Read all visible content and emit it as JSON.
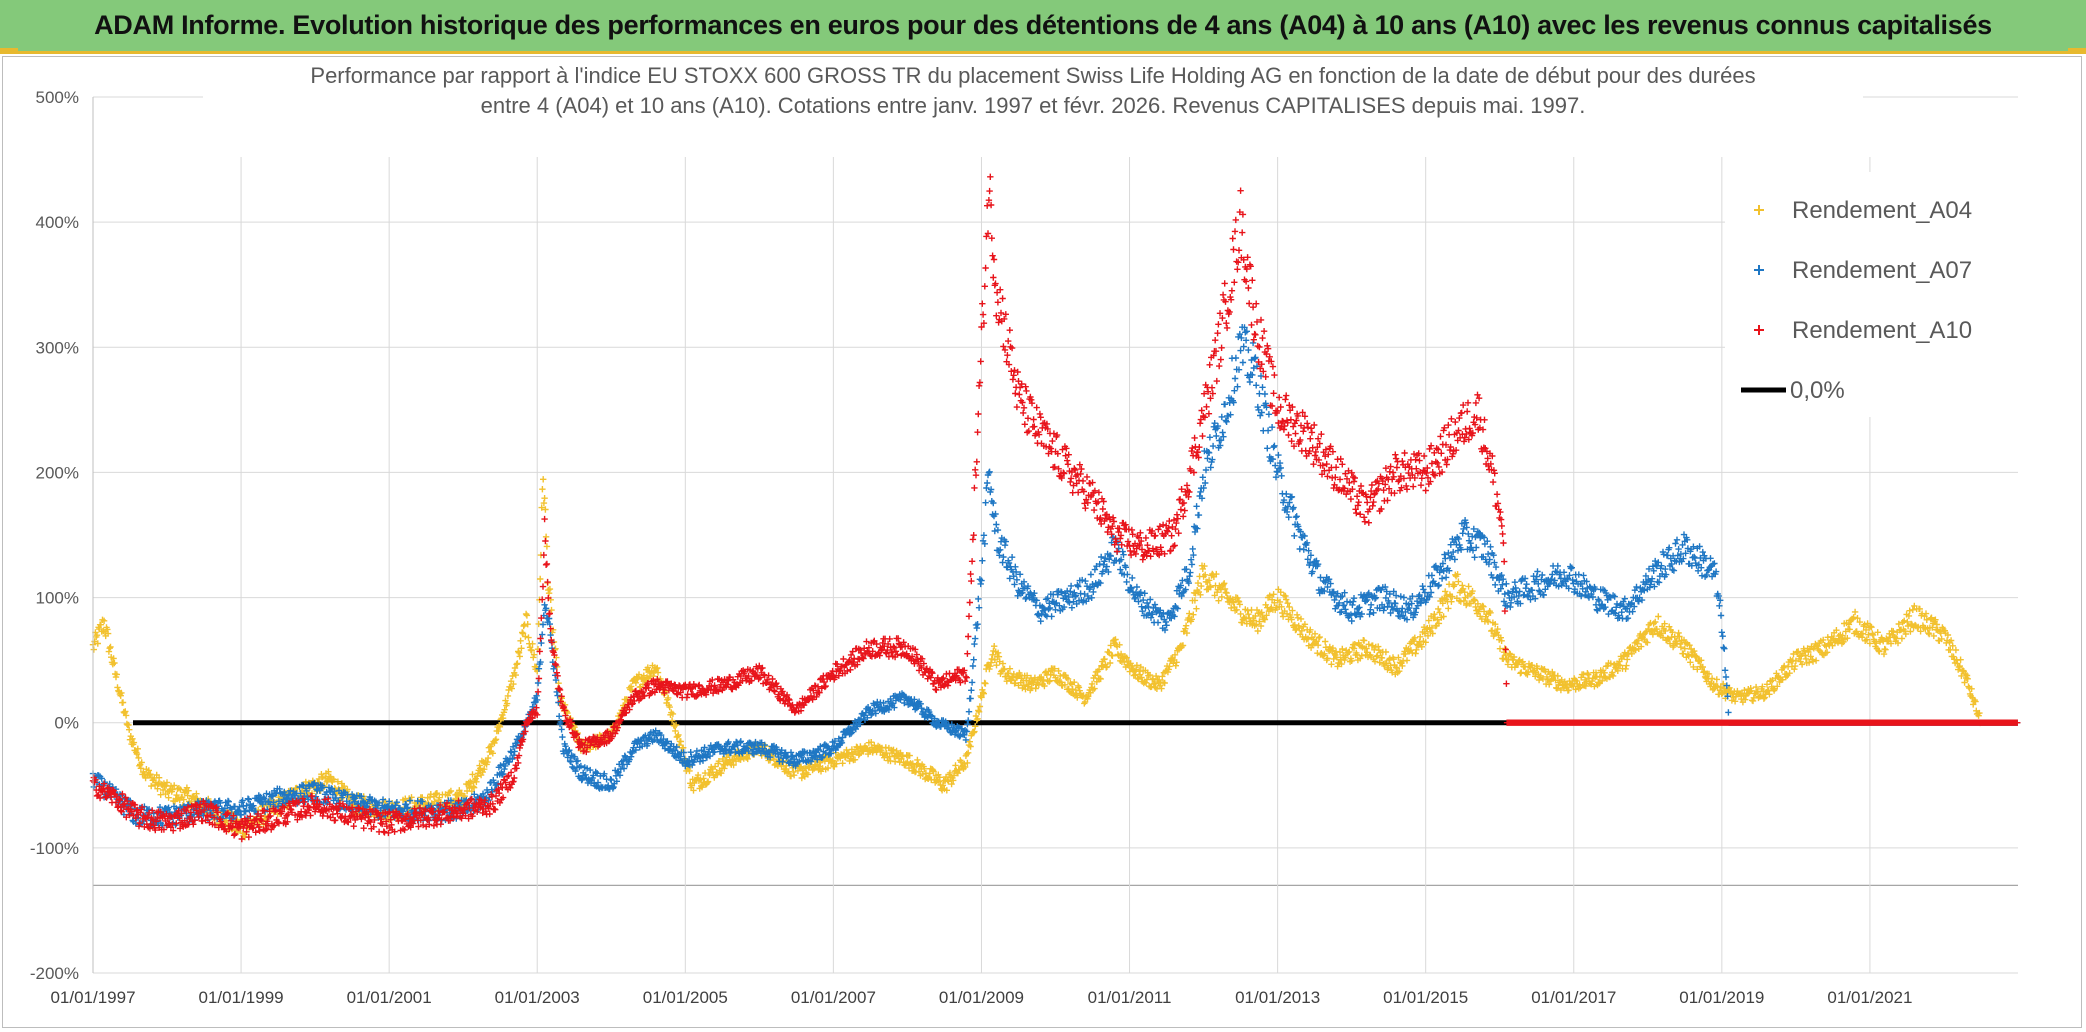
{
  "banner": {
    "title": "ADAM Informe. Evolution historique des performances en euros pour des détentions de 4 ans (A04) à 10 ans (A10) avec les revenus connus capitalisés"
  },
  "colors": {
    "banner_bg": "#84c97a",
    "banner_accent": "#e7b92f",
    "A04": "#f2c12e",
    "A07": "#1f77c4",
    "A10": "#e8141b",
    "zero_line": "#000000",
    "grid": "#d9d9d9"
  },
  "chart_data": {
    "type": "scatter",
    "title_line1": "Performance par rapport à l'indice EU STOXX 600 GROSS TR  du placement Swiss Life Holding AG en fonction de la date de début pour des durées",
    "title_line2": "entre 4 (A04) et 10 ans (A10). Cotations entre janv. 1997 et févr. 2026. Revenus CAPITALISES depuis mai. 1997.",
    "xlabel": "",
    "ylabel": "",
    "x_start_year": 1997,
    "x_end_year": 2023,
    "x_tick_labels": [
      "01/01/1997",
      "01/01/1999",
      "01/01/2001",
      "01/01/2003",
      "01/01/2005",
      "01/01/2007",
      "01/01/2009",
      "01/01/2011",
      "01/01/2013",
      "01/01/2015",
      "01/01/2017",
      "01/01/2019",
      "01/01/2021"
    ],
    "ylim": [
      -200,
      500
    ],
    "y_ticks": [
      -200,
      -100,
      0,
      100,
      200,
      300,
      400,
      500
    ],
    "y_tick_labels": [
      "-200%",
      "-100%",
      "0%",
      "100%",
      "200%",
      "300%",
      "400%",
      "500%"
    ],
    "reference_line": {
      "name": "0,0%",
      "value": 0
    },
    "legend_position": "top-right",
    "series": [
      {
        "name": "Rendement_A04",
        "color_key": "A04",
        "points": [
          [
            1997.0,
            60
          ],
          [
            1997.15,
            80
          ],
          [
            1997.3,
            40
          ],
          [
            1997.5,
            -10
          ],
          [
            1997.7,
            -40
          ],
          [
            1998.0,
            -55
          ],
          [
            1998.3,
            -60
          ],
          [
            1998.6,
            -70
          ],
          [
            1999.0,
            -85
          ],
          [
            1999.4,
            -70
          ],
          [
            1999.8,
            -55
          ],
          [
            2000.2,
            -45
          ],
          [
            2000.5,
            -65
          ],
          [
            2001.0,
            -70
          ],
          [
            2001.5,
            -65
          ],
          [
            2002.0,
            -60
          ],
          [
            2002.4,
            -20
          ],
          [
            2002.7,
            40
          ],
          [
            2002.85,
            80
          ],
          [
            2003.0,
            40
          ],
          [
            2003.08,
            200
          ],
          [
            2003.15,
            110
          ],
          [
            2003.3,
            20
          ],
          [
            2003.6,
            -20
          ],
          [
            2004.0,
            -10
          ],
          [
            2004.3,
            30
          ],
          [
            2004.6,
            45
          ],
          [
            2004.8,
            10
          ],
          [
            2005.1,
            -50
          ],
          [
            2005.6,
            -30
          ],
          [
            2006.0,
            -20
          ],
          [
            2006.5,
            -40
          ],
          [
            2007.0,
            -30
          ],
          [
            2007.5,
            -20
          ],
          [
            2008.0,
            -30
          ],
          [
            2008.5,
            -50
          ],
          [
            2008.8,
            -30
          ],
          [
            2009.0,
            20
          ],
          [
            2009.15,
            60
          ],
          [
            2009.3,
            40
          ],
          [
            2009.7,
            30
          ],
          [
            2010.0,
            40
          ],
          [
            2010.4,
            20
          ],
          [
            2010.8,
            60
          ],
          [
            2011.1,
            40
          ],
          [
            2011.4,
            30
          ],
          [
            2011.7,
            60
          ],
          [
            2012.0,
            120
          ],
          [
            2012.3,
            100
          ],
          [
            2012.7,
            80
          ],
          [
            2013.0,
            100
          ],
          [
            2013.4,
            70
          ],
          [
            2013.8,
            50
          ],
          [
            2014.2,
            60
          ],
          [
            2014.6,
            45
          ],
          [
            2015.0,
            70
          ],
          [
            2015.4,
            110
          ],
          [
            2015.8,
            90
          ],
          [
            2016.1,
            50
          ],
          [
            2016.5,
            40
          ],
          [
            2016.9,
            30
          ],
          [
            2017.3,
            35
          ],
          [
            2017.7,
            50
          ],
          [
            2018.1,
            80
          ],
          [
            2018.5,
            60
          ],
          [
            2018.9,
            30
          ],
          [
            2019.2,
            20
          ],
          [
            2019.6,
            25
          ],
          [
            2020.0,
            50
          ],
          [
            2020.4,
            60
          ],
          [
            2020.8,
            80
          ],
          [
            2021.2,
            60
          ],
          [
            2021.6,
            85
          ],
          [
            2022.0,
            70
          ],
          [
            2022.3,
            35
          ],
          [
            2022.5,
            0
          ],
          [
            2023.0,
            0
          ]
        ]
      },
      {
        "name": "Rendement_A07",
        "color_key": "A07",
        "points": [
          [
            1997.0,
            -45
          ],
          [
            1997.3,
            -60
          ],
          [
            1997.6,
            -75
          ],
          [
            1998.0,
            -75
          ],
          [
            1998.5,
            -70
          ],
          [
            1999.0,
            -70
          ],
          [
            1999.5,
            -60
          ],
          [
            2000.0,
            -55
          ],
          [
            2000.5,
            -65
          ],
          [
            2001.0,
            -70
          ],
          [
            2001.5,
            -70
          ],
          [
            2002.0,
            -70
          ],
          [
            2002.3,
            -60
          ],
          [
            2002.6,
            -30
          ],
          [
            2002.8,
            -10
          ],
          [
            2003.0,
            20
          ],
          [
            2003.1,
            100
          ],
          [
            2003.2,
            60
          ],
          [
            2003.35,
            -20
          ],
          [
            2003.6,
            -40
          ],
          [
            2004.0,
            -50
          ],
          [
            2004.3,
            -20
          ],
          [
            2004.6,
            -10
          ],
          [
            2005.0,
            -30
          ],
          [
            2005.5,
            -20
          ],
          [
            2006.0,
            -20
          ],
          [
            2006.5,
            -30
          ],
          [
            2007.0,
            -20
          ],
          [
            2007.5,
            10
          ],
          [
            2008.0,
            20
          ],
          [
            2008.4,
            0
          ],
          [
            2008.8,
            -10
          ],
          [
            2009.0,
            120
          ],
          [
            2009.1,
            200
          ],
          [
            2009.2,
            150
          ],
          [
            2009.5,
            110
          ],
          [
            2009.8,
            90
          ],
          [
            2010.2,
            100
          ],
          [
            2010.5,
            110
          ],
          [
            2010.8,
            140
          ],
          [
            2011.1,
            100
          ],
          [
            2011.5,
            80
          ],
          [
            2011.8,
            120
          ],
          [
            2012.0,
            200
          ],
          [
            2012.3,
            250
          ],
          [
            2012.5,
            300
          ],
          [
            2012.7,
            280
          ],
          [
            2013.0,
            200
          ],
          [
            2013.3,
            150
          ],
          [
            2013.6,
            110
          ],
          [
            2014.0,
            90
          ],
          [
            2014.4,
            100
          ],
          [
            2014.8,
            90
          ],
          [
            2015.2,
            120
          ],
          [
            2015.5,
            150
          ],
          [
            2015.8,
            140
          ],
          [
            2016.1,
            100
          ],
          [
            2016.5,
            110
          ],
          [
            2016.9,
            120
          ],
          [
            2017.3,
            100
          ],
          [
            2017.7,
            90
          ],
          [
            2018.1,
            120
          ],
          [
            2018.5,
            140
          ],
          [
            2018.9,
            120
          ],
          [
            2019.0,
            80
          ],
          [
            2019.1,
            0
          ],
          [
            2023.0,
            0
          ]
        ]
      },
      {
        "name": "Rendement_A10",
        "color_key": "A10",
        "points": [
          [
            1997.0,
            -50
          ],
          [
            1997.3,
            -60
          ],
          [
            1997.6,
            -75
          ],
          [
            1998.0,
            -80
          ],
          [
            1998.5,
            -70
          ],
          [
            1999.0,
            -85
          ],
          [
            1999.5,
            -75
          ],
          [
            2000.0,
            -65
          ],
          [
            2000.5,
            -75
          ],
          [
            2001.0,
            -80
          ],
          [
            2001.5,
            -75
          ],
          [
            2002.0,
            -70
          ],
          [
            2002.4,
            -65
          ],
          [
            2002.7,
            -40
          ],
          [
            2002.85,
            0
          ],
          [
            2003.0,
            10
          ],
          [
            2003.1,
            150
          ],
          [
            2003.2,
            60
          ],
          [
            2003.35,
            10
          ],
          [
            2003.6,
            -20
          ],
          [
            2004.0,
            -10
          ],
          [
            2004.3,
            20
          ],
          [
            2004.6,
            30
          ],
          [
            2005.0,
            25
          ],
          [
            2005.5,
            30
          ],
          [
            2006.0,
            40
          ],
          [
            2006.5,
            10
          ],
          [
            2007.0,
            40
          ],
          [
            2007.5,
            60
          ],
          [
            2008.0,
            60
          ],
          [
            2008.4,
            30
          ],
          [
            2008.8,
            40
          ],
          [
            2009.0,
            300
          ],
          [
            2009.1,
            430
          ],
          [
            2009.2,
            350
          ],
          [
            2009.5,
            260
          ],
          [
            2009.8,
            230
          ],
          [
            2010.2,
            200
          ],
          [
            2010.5,
            180
          ],
          [
            2010.8,
            150
          ],
          [
            2011.2,
            140
          ],
          [
            2011.6,
            150
          ],
          [
            2011.9,
            220
          ],
          [
            2012.2,
            300
          ],
          [
            2012.5,
            400
          ],
          [
            2012.7,
            320
          ],
          [
            2013.0,
            250
          ],
          [
            2013.4,
            230
          ],
          [
            2013.8,
            200
          ],
          [
            2014.2,
            170
          ],
          [
            2014.6,
            200
          ],
          [
            2015.0,
            200
          ],
          [
            2015.4,
            230
          ],
          [
            2015.7,
            250
          ],
          [
            2015.9,
            200
          ],
          [
            2016.05,
            150
          ],
          [
            2016.1,
            0
          ],
          [
            2023.0,
            0
          ]
        ]
      }
    ]
  }
}
